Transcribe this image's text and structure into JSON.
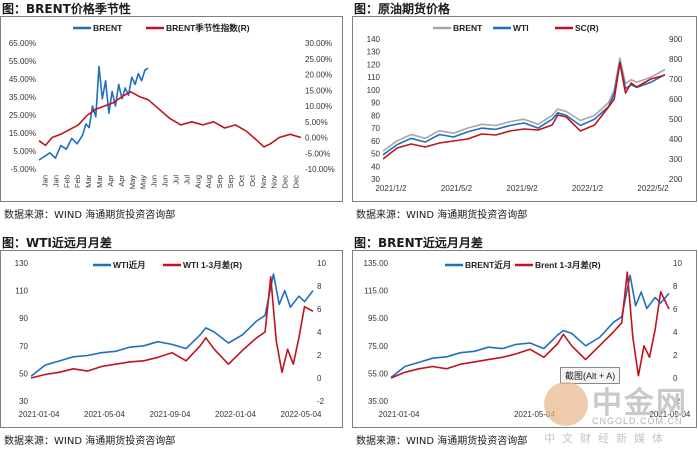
{
  "panels": [
    {
      "title": "图：BRENT价格季节性",
      "source": "数据来源：WIND   海通期货投资咨询部",
      "chart_data": {
        "type": "line",
        "legend": "top",
        "left_axis": {
          "min": -5,
          "max": 65,
          "ticks": [
            "65.00%",
            "55.00%",
            "45.00%",
            "35.00%",
            "25.00%",
            "15.00%",
            "5.00%",
            "-5.00%"
          ]
        },
        "right_axis": {
          "min": -10,
          "max": 30,
          "ticks": [
            "30.00%",
            "25.00%",
            "20.00%",
            "15.00%",
            "10.00%",
            "5.00%",
            "0.00%",
            "-5.00%",
            "-10.00%"
          ]
        },
        "x_ticks": [
          "Jan",
          "Jan",
          "Feb",
          "Feb",
          "Mar",
          "Mar",
          "Apr",
          "Apr",
          "May",
          "May",
          "Jun",
          "Jun",
          "Jul",
          "Jul",
          "Aug",
          "Aug",
          "Sep",
          "Sep",
          "Oct",
          "Oct",
          "Nov",
          "Nov",
          "Dec",
          "Dec"
        ],
        "series": [
          {
            "name": "BRENT",
            "axis": "left",
            "color": "#1f6fbf",
            "x": [
              0,
              0.25,
              0.5,
              0.75,
              1,
              1.25,
              1.5,
              1.75,
              2,
              2.15,
              2.3,
              2.45,
              2.6,
              2.75,
              2.9,
              3.05,
              3.2,
              3.35,
              3.5,
              3.65,
              3.8,
              3.95,
              4.1,
              4.25,
              4.4,
              4.55,
              4.7,
              4.85,
              5
            ],
            "y": [
              0,
              2,
              4,
              1,
              8,
              6,
              12,
              9,
              14,
              20,
              18,
              30,
              24,
              52,
              34,
              44,
              26,
              38,
              30,
              42,
              34,
              40,
              36,
              46,
              42,
              48,
              44,
              50,
              51
            ]
          },
          {
            "name": "BRENT季节性指数(R)",
            "axis": "right",
            "color": "#c0141c",
            "x": [
              0,
              0.3,
              0.6,
              1,
              1.4,
              1.8,
              2.2,
              2.6,
              3,
              3.4,
              3.8,
              4.2,
              4.6,
              5,
              5.5,
              6,
              6.5,
              7,
              7.5,
              8,
              8.5,
              9,
              9.5,
              10,
              10.3,
              10.6,
              11,
              11.5,
              12
            ],
            "y": [
              -1,
              -2.5,
              0,
              1,
              2.5,
              4,
              7,
              9,
              10,
              11,
              13,
              14.5,
              13,
              12,
              9,
              6,
              4,
              5,
              4,
              5,
              3,
              4,
              2,
              -1,
              -3,
              -2,
              0,
              1,
              0
            ]
          }
        ]
      }
    },
    {
      "title": "图：原油期货价格",
      "source": "数据来源：WIND   海通期货投资咨询部",
      "chart_data": {
        "type": "line",
        "legend": "top",
        "left_axis": {
          "min": 30,
          "max": 140,
          "ticks": [
            "140",
            "130",
            "120",
            "110",
            "100",
            "90",
            "80",
            "70",
            "60",
            "50",
            "40",
            "30"
          ]
        },
        "right_axis": {
          "min": 200,
          "max": 900,
          "ticks": [
            "900",
            "800",
            "700",
            "600",
            "500",
            "400",
            "300",
            "200"
          ]
        },
        "x_ticks": [
          "2021/1/2",
          "2021/5/2",
          "2021/9/2",
          "2022/1/2",
          "2022/5/2"
        ],
        "series": [
          {
            "name": "BRENT",
            "axis": "left",
            "color": "#a6a6a6",
            "x": [
              0,
              0.05,
              0.1,
              0.15,
              0.2,
              0.25,
              0.3,
              0.35,
              0.4,
              0.45,
              0.5,
              0.55,
              0.6,
              0.62,
              0.65,
              0.7,
              0.75,
              0.8,
              0.82,
              0.84,
              0.86,
              0.88,
              0.9,
              0.95,
              1
            ],
            "y": [
              52,
              60,
              65,
              62,
              68,
              66,
              70,
              73,
              72,
              75,
              77,
              73,
              80,
              85,
              83,
              76,
              80,
              90,
              100,
              125,
              105,
              108,
              106,
              110,
              116
            ]
          },
          {
            "name": "WTI",
            "axis": "left",
            "color": "#1f6fbf",
            "x": [
              0,
              0.05,
              0.1,
              0.15,
              0.2,
              0.25,
              0.3,
              0.35,
              0.4,
              0.45,
              0.5,
              0.55,
              0.6,
              0.62,
              0.65,
              0.7,
              0.75,
              0.8,
              0.82,
              0.84,
              0.86,
              0.88,
              0.9,
              0.95,
              1
            ],
            "y": [
              49,
              57,
              62,
              59,
              65,
              63,
              67,
              70,
              69,
              72,
              74,
              70,
              77,
              82,
              80,
              72,
              77,
              87,
              97,
              122,
              101,
              104,
              102,
              106,
              112
            ]
          },
          {
            "name": "SC(R)",
            "axis": "right",
            "color": "#c0141c",
            "x": [
              0,
              0.05,
              0.1,
              0.15,
              0.2,
              0.25,
              0.3,
              0.35,
              0.4,
              0.45,
              0.5,
              0.55,
              0.6,
              0.62,
              0.65,
              0.7,
              0.75,
              0.8,
              0.82,
              0.84,
              0.86,
              0.88,
              0.9,
              0.95,
              1
            ],
            "y": [
              300,
              355,
              375,
              360,
              380,
              390,
              400,
              425,
              420,
              440,
              450,
              445,
              470,
              520,
              510,
              440,
              470,
              560,
              600,
              780,
              630,
              680,
              660,
              700,
              720
            ]
          }
        ]
      }
    },
    {
      "title": "图：WTI近远月月差",
      "source": "数据来源：WIND   海通期货投资咨询部",
      "chart_data": {
        "type": "line",
        "legend": "top",
        "left_axis": {
          "min": 30,
          "max": 130,
          "ticks": [
            "130",
            "110",
            "90",
            "70",
            "50",
            "30"
          ]
        },
        "right_axis": {
          "min": -2,
          "max": 10,
          "ticks": [
            "10",
            "8",
            "6",
            "4",
            "2",
            "0",
            "-2"
          ]
        },
        "x_ticks": [
          "2021-01-04",
          "2021-05-04",
          "2021-09-04",
          "2022-01-04",
          "2022-05-04"
        ],
        "series": [
          {
            "name": "WTI近月",
            "axis": "left",
            "color": "#1f6fbf",
            "x": [
              0,
              0.05,
              0.1,
              0.15,
              0.2,
              0.25,
              0.3,
              0.35,
              0.4,
              0.45,
              0.5,
              0.55,
              0.6,
              0.62,
              0.65,
              0.7,
              0.75,
              0.8,
              0.83,
              0.86,
              0.88,
              0.9,
              0.92,
              0.95,
              0.97,
              1
            ],
            "y": [
              48,
              56,
              59,
              62,
              63,
              65,
              66,
              69,
              70,
              73,
              71,
              68,
              78,
              83,
              80,
              72,
              78,
              88,
              92,
              122,
              100,
              110,
              98,
              106,
              102,
              110
            ]
          },
          {
            "name": "WTI 1-3月差(R)",
            "axis": "right",
            "color": "#c0141c",
            "x": [
              0,
              0.05,
              0.1,
              0.15,
              0.2,
              0.25,
              0.3,
              0.35,
              0.4,
              0.45,
              0.5,
              0.55,
              0.6,
              0.62,
              0.65,
              0.7,
              0.75,
              0.8,
              0.83,
              0.85,
              0.87,
              0.89,
              0.91,
              0.93,
              0.95,
              0.97,
              1
            ],
            "y": [
              0,
              0.3,
              0.5,
              0.8,
              0.6,
              1,
              1.2,
              1.4,
              1.5,
              1.8,
              2.2,
              1.5,
              2.8,
              3.5,
              2.5,
              1.2,
              2.4,
              3.5,
              4,
              8.8,
              3.2,
              0.5,
              2.5,
              1.2,
              3.5,
              6.2,
              5.8
            ]
          }
        ]
      }
    },
    {
      "title": "图：BRENT近远月月差",
      "source": "数据来源：WIND   海通期货投资咨询部",
      "chart_data": {
        "type": "line",
        "legend": "top",
        "left_axis": {
          "min": 35,
          "max": 135,
          "ticks": [
            "135.00",
            "115.00",
            "95.00",
            "75.00",
            "55.00",
            "35.00"
          ]
        },
        "right_axis": {
          "min": -2,
          "max": 10,
          "ticks": [
            "10",
            "8",
            "6",
            "4",
            "2",
            "0",
            "-2"
          ]
        },
        "x_ticks": [
          "2021-01-04",
          "2021-05-04",
          "2021-09-04"
        ],
        "series": [
          {
            "name": "BRENT近月",
            "axis": "left",
            "color": "#1f6fbf",
            "x": [
              0,
              0.05,
              0.1,
              0.15,
              0.2,
              0.25,
              0.3,
              0.35,
              0.4,
              0.45,
              0.5,
              0.55,
              0.6,
              0.62,
              0.65,
              0.7,
              0.75,
              0.8,
              0.83,
              0.86,
              0.88,
              0.9,
              0.92,
              0.95,
              0.97,
              1
            ],
            "y": [
              52,
              60,
              63,
              66,
              67,
              70,
              71,
              74,
              73,
              76,
              77,
              73,
              83,
              86,
              84,
              75,
              81,
              92,
              96,
              126,
              104,
              114,
              102,
              110,
              106,
              113
            ]
          },
          {
            "name": "Brent 1-3月差(R)",
            "axis": "right",
            "color": "#c0141c",
            "x": [
              0,
              0.05,
              0.1,
              0.15,
              0.2,
              0.25,
              0.3,
              0.35,
              0.4,
              0.45,
              0.5,
              0.55,
              0.6,
              0.62,
              0.65,
              0.7,
              0.75,
              0.8,
              0.83,
              0.85,
              0.87,
              0.89,
              0.91,
              0.93,
              0.95,
              0.97,
              1
            ],
            "y": [
              0,
              0.5,
              0.8,
              1,
              0.8,
              1.2,
              1.4,
              1.6,
              1.8,
              2.1,
              2.5,
              1.8,
              3,
              3.8,
              2.8,
              1.6,
              2.8,
              4,
              4.8,
              9.2,
              3.5,
              0.2,
              2.8,
              1.8,
              4.2,
              7.5,
              6
            ]
          }
        ]
      }
    }
  ],
  "tooltip": "截图(Alt + A)",
  "watermark": {
    "title": "中金网",
    "url": "CNGOLD.COM.CN",
    "slogan": "中文财经新媒体"
  }
}
